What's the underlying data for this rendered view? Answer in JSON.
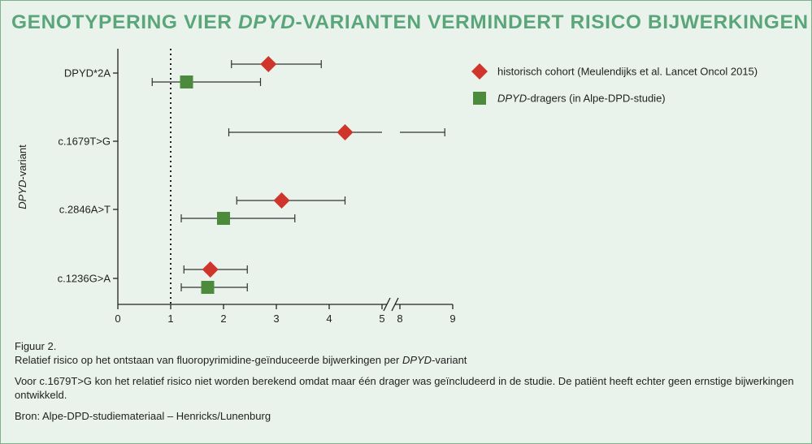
{
  "title": {
    "part1": "GENOTYPERING VIER ",
    "italic": "DPYD",
    "part2": "-VARIANTEN VERMINDERT RISICO BIJWERKINGEN"
  },
  "chart_data": {
    "type": "forest",
    "xlim": [
      0,
      9
    ],
    "x_break": [
      5,
      8
    ],
    "x_ticks": [
      "0",
      "1",
      "2",
      "3",
      "4",
      "5",
      "8",
      "9"
    ],
    "reference_line": 1,
    "ylabel_italic": "DPYD",
    "ylabel_rest": "-variant",
    "categories": [
      "DPYD*2A",
      "c.1679T>G",
      "c.2846A>T",
      "c.1236G>A"
    ],
    "series": [
      {
        "name": "historisch cohort (Meulendijks et al. Lancet Oncol 2015)",
        "color": "#d0352c",
        "marker": "diamond",
        "points": [
          {
            "category": "DPYD*2A",
            "value": 2.85,
            "lo": 2.15,
            "hi": 3.85
          },
          {
            "category": "c.1679T>G",
            "value": 4.3,
            "lo": 2.1,
            "hi": 8.85
          },
          {
            "category": "c.2846A>T",
            "value": 3.1,
            "lo": 2.25,
            "hi": 4.3
          },
          {
            "category": "c.1236G>A",
            "value": 1.75,
            "lo": 1.25,
            "hi": 2.45
          }
        ]
      },
      {
        "name_italic": "DPYD",
        "name_rest": "-dragers (in Alpe-DPD-studie)",
        "color": "#4b8b3b",
        "marker": "square",
        "points": [
          {
            "category": "DPYD*2A",
            "value": 1.3,
            "lo": 0.65,
            "hi": 2.7
          },
          {
            "category": "c.2846A>T",
            "value": 2.0,
            "lo": 1.2,
            "hi": 3.35
          },
          {
            "category": "c.1236G>A",
            "value": 1.7,
            "lo": 1.2,
            "hi": 2.45
          }
        ]
      }
    ]
  },
  "caption": {
    "figure_label": "Figuur 2.",
    "line2_pre": "Relatief risico op het ontstaan van fluoropyrimidine-geïnduceerde bijwerkingen per ",
    "line2_italic": "DPYD",
    "line2_post": "-variant",
    "note": "Voor c.1679T>G kon het relatief risico niet worden berekend omdat maar één drager was geïncludeerd in de studie. De patiënt heeft echter geen ernstige bijwerkingen ontwikkeld.",
    "source": "Bron: Alpe-DPD-studiemateriaal – Henricks/Lunenburg"
  }
}
